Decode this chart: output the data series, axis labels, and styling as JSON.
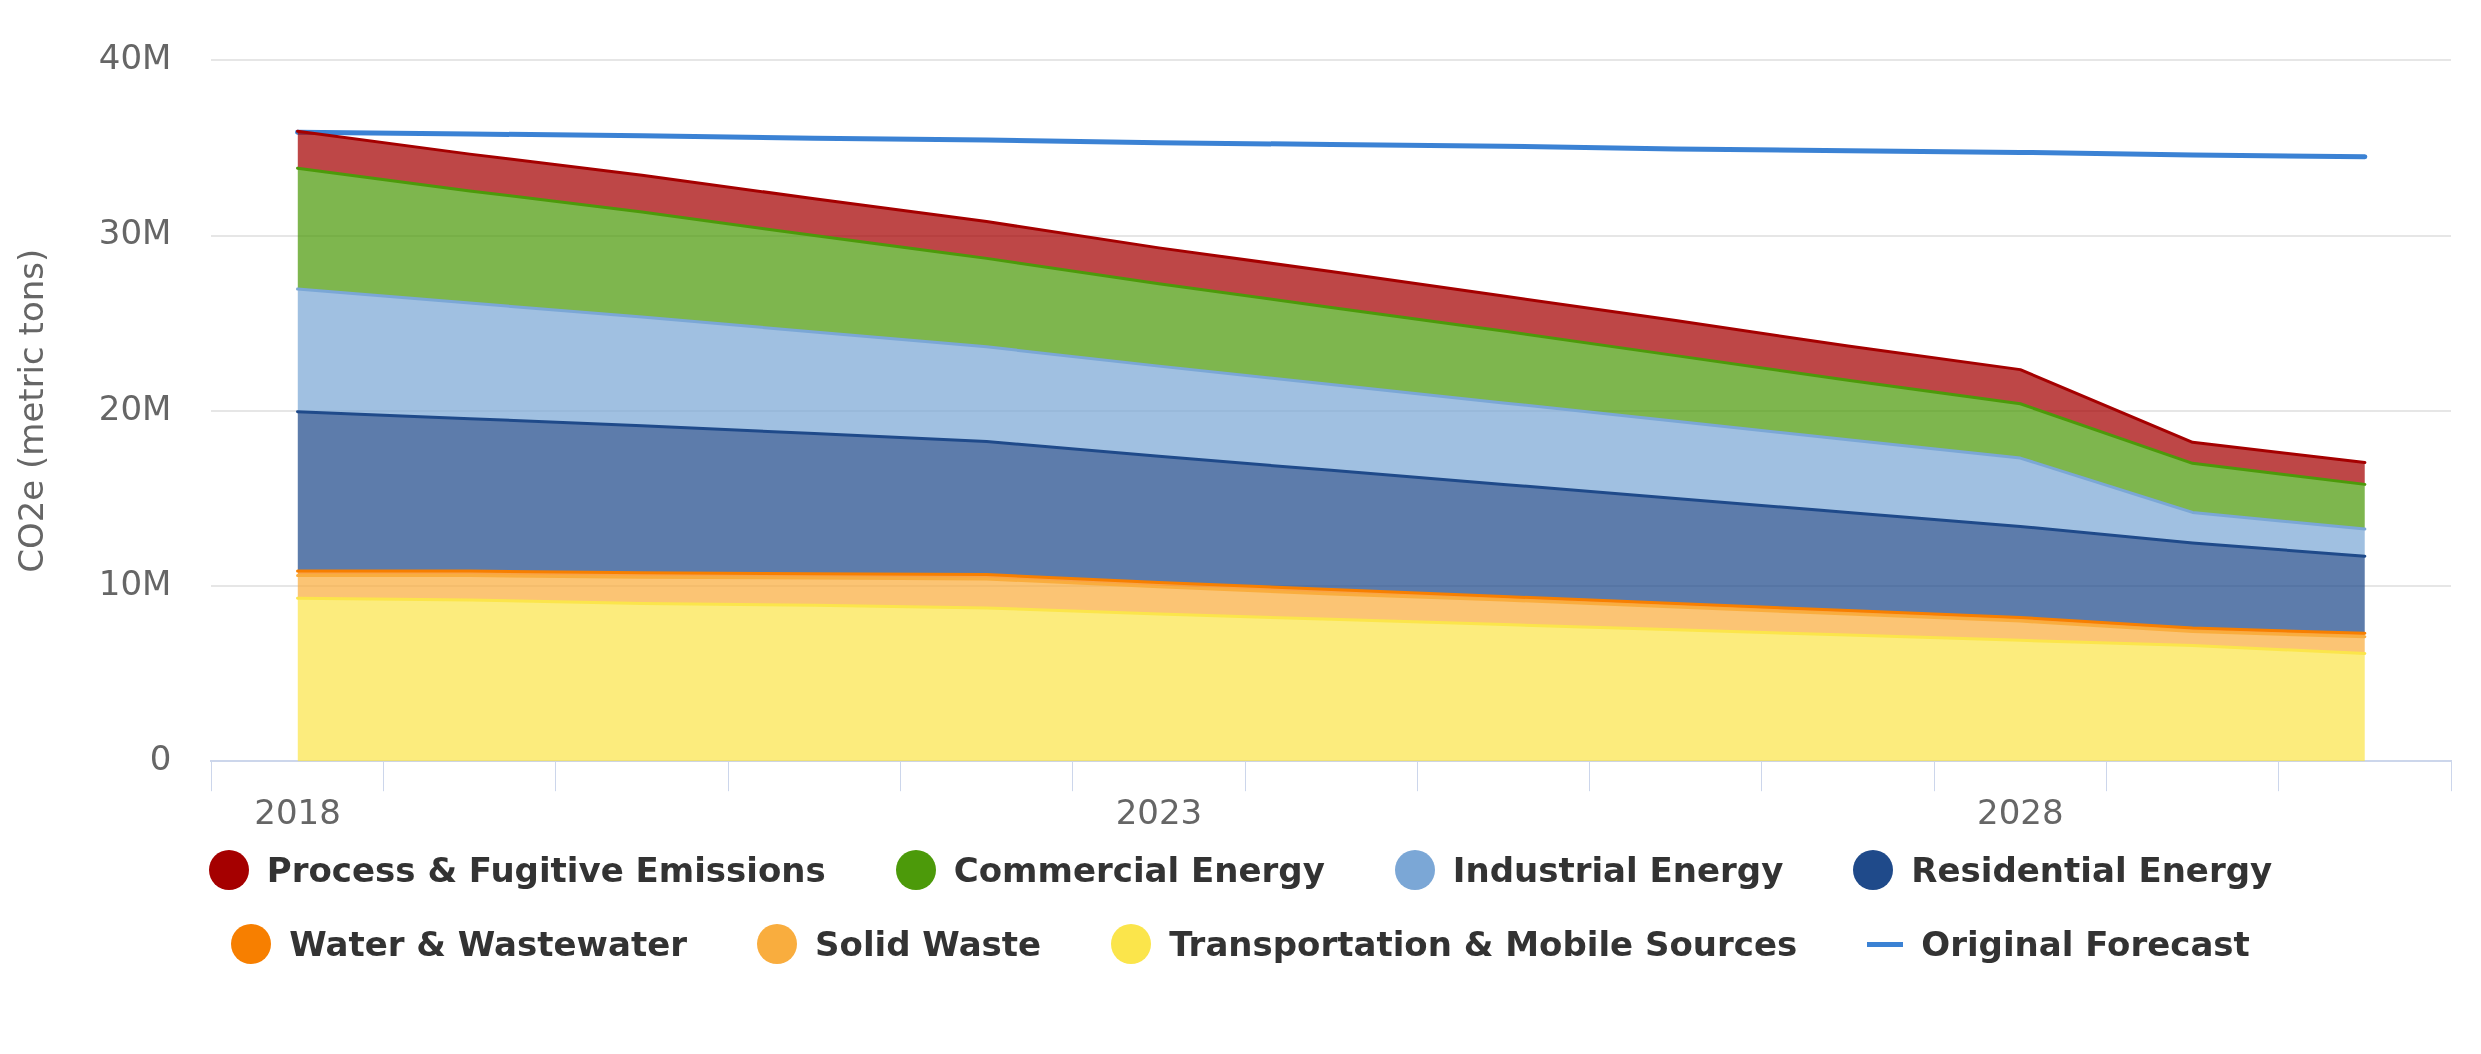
{
  "chart_data": {
    "type": "area",
    "ylabel": "CO2e (metric tons)",
    "categories": [
      "2018",
      null,
      null,
      null,
      null,
      "2023",
      null,
      null,
      null,
      null,
      "2028",
      null,
      null
    ],
    "stacked": true,
    "ylim": [
      0,
      40
    ],
    "yticks": [
      {
        "value": 0,
        "label": "0"
      },
      {
        "value": 10,
        "label": "10M"
      },
      {
        "value": 20,
        "label": "20M"
      },
      {
        "value": 30,
        "label": "30M"
      },
      {
        "value": 40,
        "label": "40M"
      }
    ],
    "grid": "y",
    "legend": "bottom",
    "marker": "none",
    "series": [
      {
        "name": "Transportation & Mobile Sources",
        "color": "#fbe54b",
        "values": [
          9.3,
          9.2,
          9.0,
          8.9,
          8.75,
          8.4,
          8.1,
          7.8,
          7.5,
          7.2,
          6.9,
          6.6,
          6.15
        ]
      },
      {
        "name": "Solid Waste",
        "color": "#f9ad3e",
        "values": [
          1.3,
          1.4,
          1.5,
          1.55,
          1.65,
          1.55,
          1.45,
          1.4,
          1.3,
          1.2,
          1.1,
          0.8,
          0.95
        ]
      },
      {
        "name": "Water & Wastewater",
        "color": "#f77f00",
        "values": [
          0.25,
          0.25,
          0.25,
          0.25,
          0.25,
          0.25,
          0.25,
          0.2,
          0.2,
          0.2,
          0.2,
          0.2,
          0.2
        ]
      },
      {
        "name": "Residential Energy",
        "color": "#1f4a8a",
        "values": [
          9.1,
          8.7,
          8.4,
          8.0,
          7.6,
          7.2,
          6.8,
          6.4,
          6.0,
          5.6,
          5.2,
          4.85,
          4.4
        ]
      },
      {
        "name": "Industrial Energy",
        "color": "#7ba7d6",
        "values": [
          7.0,
          6.6,
          6.2,
          5.8,
          5.4,
          5.15,
          4.9,
          4.65,
          4.4,
          4.15,
          3.9,
          1.75,
          1.55
        ]
      },
      {
        "name": "Commercial Energy",
        "color": "#4c9a0a",
        "values": [
          6.9,
          6.4,
          6.0,
          5.5,
          5.05,
          4.7,
          4.4,
          4.1,
          3.75,
          3.4,
          3.1,
          2.8,
          2.55
        ]
      },
      {
        "name": "Process & Fugitive Emissions",
        "color": "#a50000",
        "values": [
          2.1,
          2.1,
          2.1,
          2.1,
          2.1,
          2.05,
          2.05,
          2.0,
          2.0,
          1.95,
          1.95,
          1.2,
          1.25
        ]
      },
      {
        "name": "Original Forecast",
        "type": "line",
        "color": "#3b82d4",
        "values": [
          35.9,
          35.8,
          35.7,
          35.55,
          35.45,
          35.3,
          35.2,
          35.1,
          34.95,
          34.85,
          34.75,
          34.6,
          34.5
        ]
      }
    ]
  }
}
